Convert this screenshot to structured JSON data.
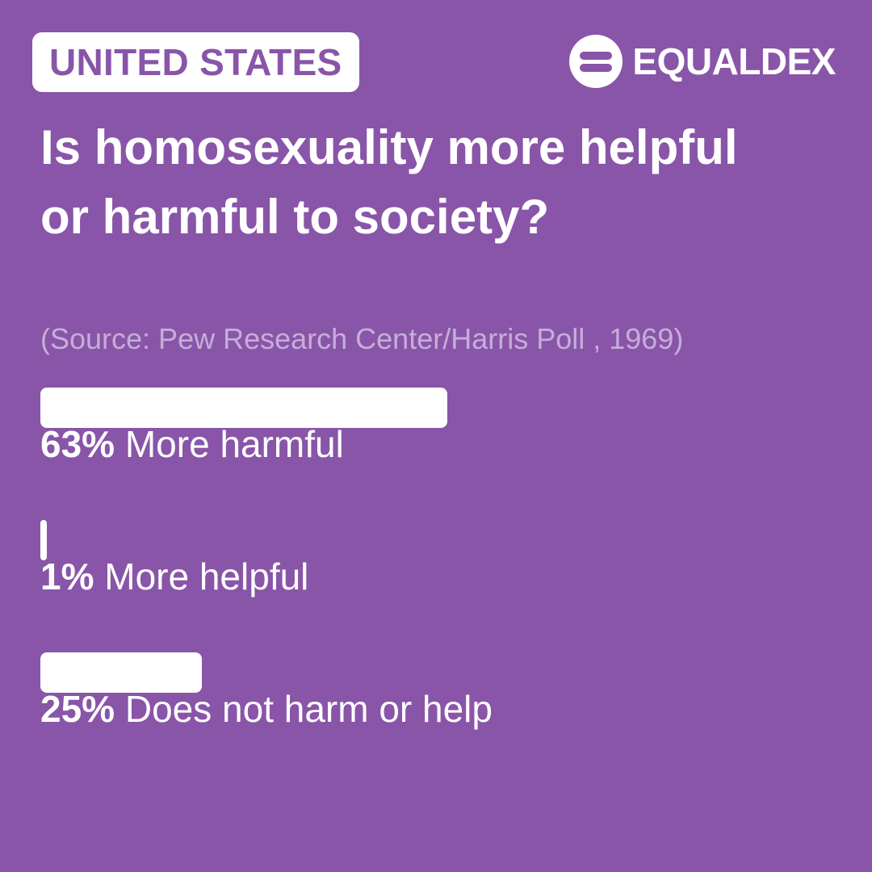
{
  "colors": {
    "background": "#8955a8",
    "bar": "#ffffff",
    "text": "#ffffff",
    "source": "#c6aed8"
  },
  "header": {
    "country": "UNITED STATES",
    "brand": "EQUALDEX",
    "brand_icon": "equaldex-logo-icon"
  },
  "title": "Is homosexuality more helpful or harmful to society?",
  "source": "(Source: Pew Research Center/Harris Poll , 1969)",
  "chart_data": {
    "type": "bar",
    "orientation": "horizontal",
    "title": "Is homosexuality more helpful or harmful to society?",
    "source": "(Source: Pew Research Center/Harris Poll , 1969)",
    "categories": [
      "More harmful",
      "More helpful",
      "Does not harm or help"
    ],
    "values": [
      63,
      1,
      25
    ],
    "value_labels": [
      "63%",
      "1%",
      "25%"
    ],
    "unit": "%",
    "xlim": [
      0,
      100
    ],
    "grid": false,
    "legend": "none"
  }
}
